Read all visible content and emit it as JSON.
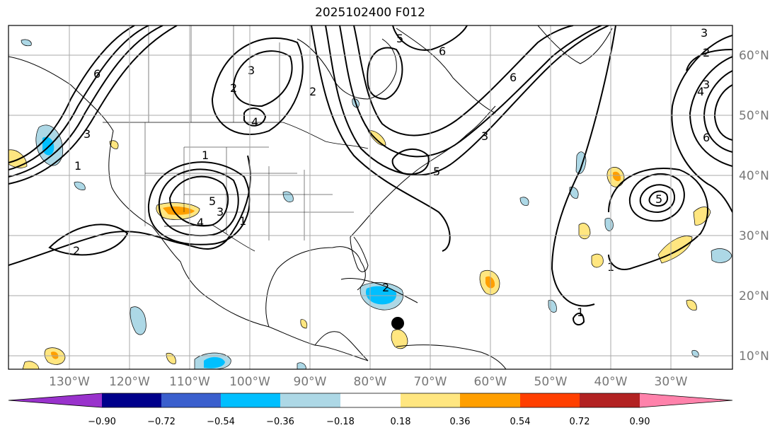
{
  "title": "2025102400 F012",
  "lon_labels": [
    "130°W",
    "120°W",
    "110°W",
    "100°W",
    "90°W",
    "80°W",
    "70°W",
    "60°W",
    "50°W",
    "40°W",
    "30°W"
  ],
  "lat_labels": [
    "60°N",
    "50°N",
    "40°N",
    "30°N",
    "20°N",
    "10°N"
  ],
  "colorbar": {
    "ticks": [
      "−0.90",
      "−0.72",
      "−0.54",
      "−0.36",
      "−0.18",
      "0.18",
      "0.36",
      "0.54",
      "0.72",
      "0.90"
    ],
    "colors": [
      "#9932CC",
      "#00008B",
      "#3A5FCD",
      "#00BFFF",
      "#ADD8E6",
      "#FFFFFF",
      "#FFE680",
      "#FF9F00",
      "#FF3F00",
      "#B22222",
      "#FF82AB"
    ]
  },
  "contour_labels": [
    "6",
    "2",
    "1",
    "3",
    "4",
    "5",
    "2",
    "1",
    "3",
    "4",
    "5",
    "6",
    "2",
    "3",
    "6",
    "1",
    "5",
    "3",
    "1",
    "2",
    "1",
    "4",
    "6",
    "3",
    "2",
    "5",
    "3"
  ],
  "colors": {
    "contour": "#000000",
    "coast": "#000000",
    "grid": "#aaaaaa",
    "marker": "#000000"
  }
}
